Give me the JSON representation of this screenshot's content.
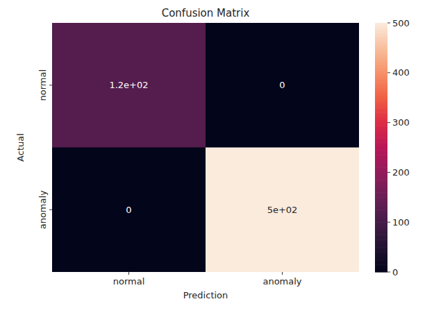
{
  "chart_data": {
    "type": "heatmap",
    "title": "Confusion Matrix",
    "x_label": "Prediction",
    "y_label": "Actual",
    "categories": [
      "normal",
      "anomaly"
    ],
    "y_categories": [
      "normal",
      "anomaly"
    ],
    "values": [
      [
        120,
        0
      ],
      [
        0,
        500
      ]
    ],
    "value_labels": [
      [
        "1.2e+02",
        "0"
      ],
      [
        "0",
        "5e+02"
      ]
    ],
    "data_labels": true,
    "colorbar_range": [
      0,
      500
    ],
    "colorbar_ticks": [
      0,
      100,
      200,
      300,
      400,
      500
    ]
  }
}
